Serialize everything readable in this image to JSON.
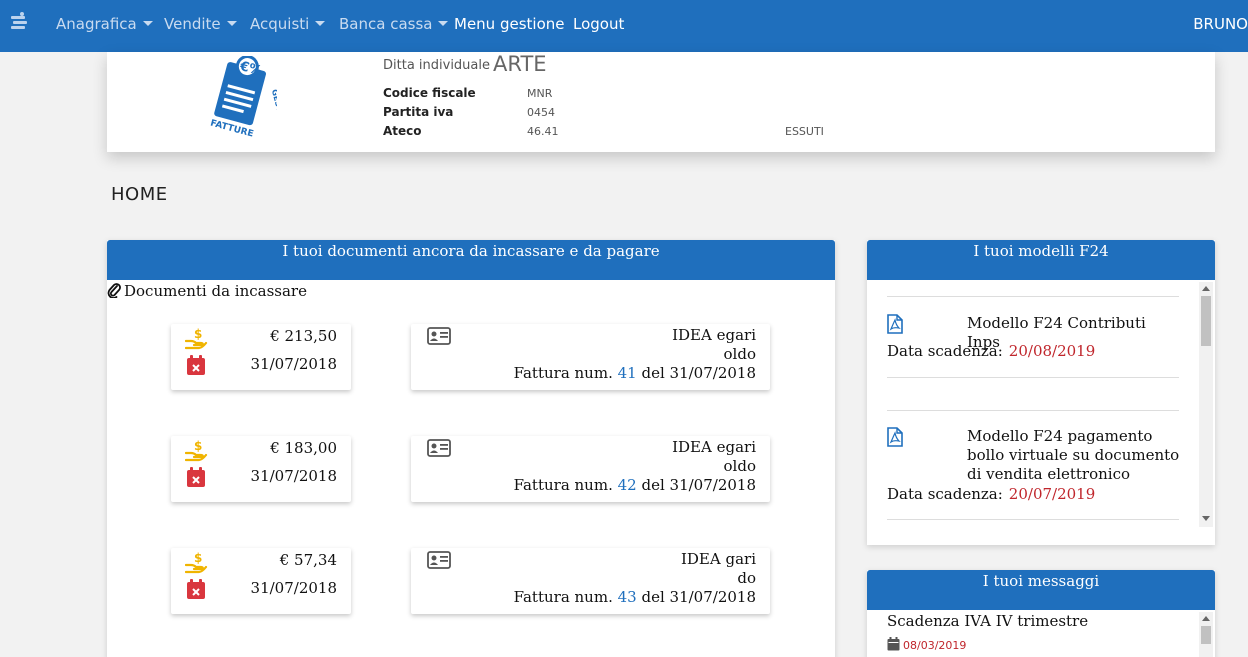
{
  "nav": {
    "items": [
      {
        "label": "Anagrafica",
        "dropdown": true
      },
      {
        "label": "Vendite",
        "dropdown": true
      },
      {
        "label": "Acquisti",
        "dropdown": true
      },
      {
        "label": "Banca cassa",
        "dropdown": true
      },
      {
        "label": "Menu gestione",
        "dropdown": false
      },
      {
        "label": "Logout",
        "dropdown": false
      }
    ],
    "user": "BRUNO"
  },
  "company": {
    "logo_text": "FATTURE GESTITE",
    "ditta_label": "Ditta individuale",
    "ditta_name": "ARTE",
    "fields": [
      {
        "label": "Codice fiscale",
        "value": "MNR"
      },
      {
        "label": "Partita iva",
        "value": "0454"
      },
      {
        "label": "Ateco",
        "value": "46.41",
        "extra": "ESSUTI"
      }
    ]
  },
  "page_title": "HOME",
  "documents_panel": {
    "title": "I tuoi documenti ancora da incassare e da pagare",
    "section": "Documenti da incassare",
    "rows": [
      {
        "amount": "€ 213,50",
        "date": "31/07/2018",
        "client_line1": "IDEA                          egari",
        "client_line2": "oldo",
        "invoice_prefix": "Fattura num.",
        "invoice_num": "41",
        "invoice_suffix": "del 31/07/2018"
      },
      {
        "amount": "€ 183,00",
        "date": "31/07/2018",
        "client_line1": "IDEA                          egari",
        "client_line2": "oldo",
        "invoice_prefix": "Fattura num.",
        "invoice_num": "42",
        "invoice_suffix": "del 31/07/2018"
      },
      {
        "amount": "€ 57,34",
        "date": "31/07/2018",
        "client_line1": "IDEA                          gari",
        "client_line2": "do",
        "invoice_prefix": "Fattura num.",
        "invoice_num": "43",
        "invoice_suffix": "del 31/07/2018"
      }
    ]
  },
  "f24_panel": {
    "title": "I tuoi modelli F24",
    "items": [
      {
        "title": "Modello F24 Contributi Inps",
        "deadline_label": "Data scadenza:",
        "deadline": "20/08/2019"
      },
      {
        "title": "Modello F24 pagamento bollo virtuale su documento di vendita elettronico",
        "deadline_label": "Data scadenza:",
        "deadline": "20/07/2019"
      }
    ]
  },
  "messages_panel": {
    "title": "I tuoi messaggi",
    "items": [
      {
        "title": "Scadenza IVA IV trimestre",
        "date": "08/03/2019"
      }
    ]
  },
  "colors": {
    "primary": "#1f6fbd",
    "deadline": "#c0262c",
    "money_icon": "#f0b400",
    "calendar_icon": "#d9363e"
  }
}
